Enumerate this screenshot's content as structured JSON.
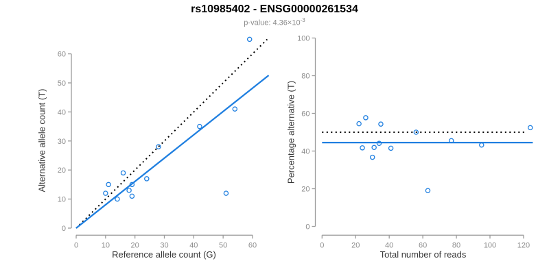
{
  "header": {
    "title": "rs10985402 - ENSG00000261534",
    "pvalue_text": "p-value: 4.36×10",
    "pvalue_exponent": "-3"
  },
  "colors": {
    "accent_blue": "#1f7fe0",
    "dotted_black": "#000000",
    "tick_text_gray": "#8c8c8c"
  },
  "chart_data": [
    {
      "type": "scatter",
      "xlabel": "Reference allele count (G)",
      "ylabel": "Alternative allele count (T)",
      "x_ticks": [
        0,
        10,
        20,
        30,
        40,
        50,
        60
      ],
      "y_ticks": [
        0,
        10,
        20,
        30,
        40,
        50,
        60
      ],
      "xlim": [
        0,
        66
      ],
      "ylim": [
        0,
        67
      ],
      "grid": false,
      "point_color": "#1f7fe0",
      "points": [
        [
          59,
          65
        ],
        [
          54,
          41
        ],
        [
          51,
          12
        ],
        [
          42,
          35
        ],
        [
          28,
          28
        ],
        [
          24,
          17
        ],
        [
          19,
          15
        ],
        [
          19,
          11
        ],
        [
          18,
          13
        ],
        [
          16,
          19
        ],
        [
          14,
          10
        ],
        [
          11,
          15
        ],
        [
          10,
          12
        ]
      ],
      "lines": [
        {
          "name": "identity-line",
          "style": "dotted",
          "color": "#000000",
          "x1": 0,
          "y1": 0,
          "x2": 65,
          "y2": 65
        },
        {
          "name": "regression-line",
          "style": "solid",
          "color": "#1f7fe0",
          "x1": 0,
          "y1": 0,
          "x2": 65.5,
          "y2": 52.6
        }
      ]
    },
    {
      "type": "scatter",
      "xlabel": "Total number of reads",
      "ylabel": "Percentage alternative (T)",
      "x_ticks": [
        0,
        20,
        40,
        60,
        80,
        100,
        120
      ],
      "y_ticks": [
        0,
        20,
        40,
        60,
        80,
        100
      ],
      "xlim": [
        0,
        126
      ],
      "ylim": [
        0,
        100
      ],
      "grid": false,
      "point_color": "#1f7fe0",
      "points": [
        [
          124,
          52.4
        ],
        [
          95,
          43.2
        ],
        [
          77,
          45.5
        ],
        [
          63,
          19
        ],
        [
          56,
          50
        ],
        [
          41,
          41.5
        ],
        [
          35,
          54.3
        ],
        [
          34,
          44.1
        ],
        [
          31,
          41.9
        ],
        [
          30,
          36.7
        ],
        [
          26,
          57.7
        ],
        [
          24,
          41.7
        ],
        [
          22,
          54.5
        ]
      ],
      "lines": [
        {
          "name": "fifty-percent-line",
          "style": "dotted",
          "color": "#000000",
          "x1": 0,
          "y1": 50,
          "x2": 122,
          "y2": 50
        },
        {
          "name": "mean-percentage-line",
          "style": "solid",
          "color": "#1f7fe0",
          "x1": 0,
          "y1": 44.5,
          "x2": 125.5,
          "y2": 44.5
        }
      ]
    }
  ]
}
